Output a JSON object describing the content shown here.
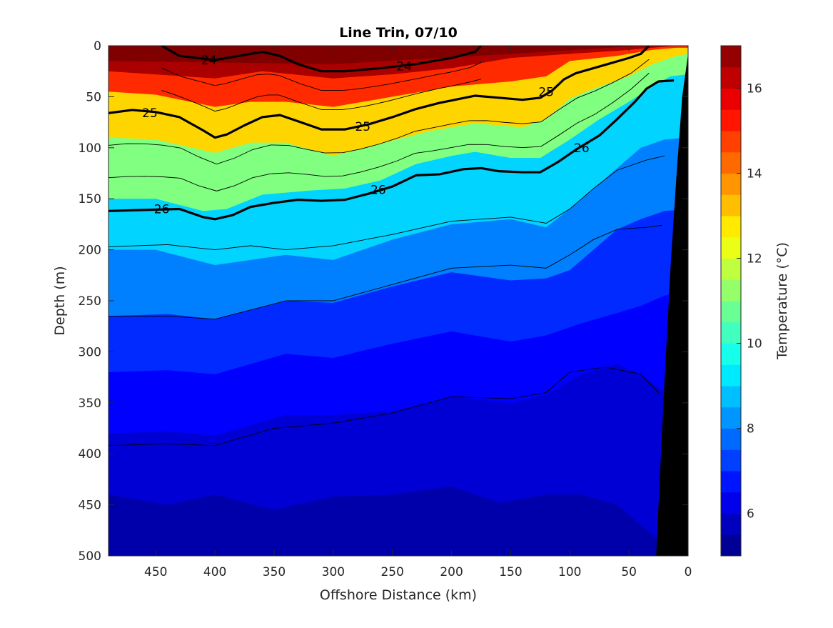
{
  "chart_data": {
    "type": "contour",
    "title": "Line Trin, 07/10",
    "xlabel": "Offshore Distance (km)",
    "ylabel": "Depth (m)",
    "colorbar_label": "Temperature (°C)",
    "xlim": [
      490,
      0
    ],
    "ylim": [
      0,
      500
    ],
    "x_reversed": true,
    "y_reversed": true,
    "xticks": [
      450,
      400,
      350,
      300,
      250,
      200,
      150,
      100,
      50,
      0
    ],
    "yticks": [
      0,
      50,
      100,
      150,
      200,
      250,
      300,
      350,
      400,
      450,
      500
    ],
    "colorbar": {
      "range": [
        5,
        17
      ],
      "step": 0.5,
      "ticks": [
        6,
        8,
        10,
        12,
        14,
        16
      ],
      "colormap": "jet"
    },
    "bathymetry_color": "#000000",
    "bold_contours": [
      {
        "label": "24",
        "points": [
          [
            445,
            0
          ],
          [
            430,
            10
          ],
          [
            400,
            14
          ],
          [
            380,
            10
          ],
          [
            360,
            6
          ],
          [
            345,
            10
          ],
          [
            330,
            18
          ],
          [
            310,
            25
          ],
          [
            290,
            25
          ],
          [
            260,
            22
          ],
          [
            230,
            18
          ],
          [
            200,
            12
          ],
          [
            180,
            6
          ],
          [
            175,
            0
          ]
        ]
      },
      {
        "label": "25",
        "points": [
          [
            490,
            66
          ],
          [
            470,
            63
          ],
          [
            450,
            65
          ],
          [
            430,
            70
          ],
          [
            410,
            83
          ],
          [
            400,
            90
          ],
          [
            390,
            87
          ],
          [
            375,
            78
          ],
          [
            360,
            70
          ],
          [
            345,
            68
          ],
          [
            330,
            74
          ],
          [
            310,
            82
          ],
          [
            290,
            82
          ],
          [
            270,
            77
          ],
          [
            250,
            70
          ],
          [
            230,
            62
          ],
          [
            210,
            56
          ],
          [
            180,
            49
          ],
          [
            160,
            51
          ],
          [
            140,
            53
          ],
          [
            125,
            51
          ],
          [
            115,
            44
          ],
          [
            105,
            33
          ],
          [
            95,
            27
          ],
          [
            80,
            22
          ],
          [
            65,
            17
          ],
          [
            50,
            12
          ],
          [
            40,
            8
          ],
          [
            33,
            0
          ]
        ]
      },
      {
        "label": "26",
        "points": [
          [
            490,
            162
          ],
          [
            460,
            161
          ],
          [
            430,
            160
          ],
          [
            410,
            168
          ],
          [
            400,
            170
          ],
          [
            385,
            166
          ],
          [
            370,
            158
          ],
          [
            350,
            154
          ],
          [
            330,
            151
          ],
          [
            310,
            152
          ],
          [
            290,
            151
          ],
          [
            270,
            145
          ],
          [
            250,
            138
          ],
          [
            230,
            127
          ],
          [
            210,
            126
          ],
          [
            190,
            121
          ],
          [
            175,
            120
          ],
          [
            160,
            123
          ],
          [
            140,
            124
          ],
          [
            125,
            124
          ],
          [
            110,
            114
          ],
          [
            95,
            102
          ],
          [
            75,
            88
          ],
          [
            60,
            72
          ],
          [
            45,
            55
          ],
          [
            35,
            42
          ],
          [
            25,
            35
          ],
          [
            12,
            34
          ]
        ]
      }
    ],
    "bathymetry": [
      [
        0,
        8
      ],
      [
        5,
        50
      ],
      [
        10,
        130
      ],
      [
        15,
        220
      ],
      [
        20,
        330
      ],
      [
        25,
        450
      ],
      [
        27,
        500
      ]
    ]
  }
}
